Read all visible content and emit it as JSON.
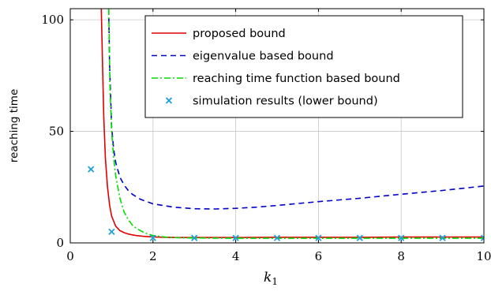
{
  "chart_data": {
    "type": "line",
    "xlabel": "k",
    "xlabel_sub": "1",
    "ylabel": "reaching time",
    "xlim": [
      0,
      10
    ],
    "ylim": [
      0,
      105
    ],
    "x_ticks": [
      "0",
      "2",
      "4",
      "6",
      "8",
      "10"
    ],
    "y_ticks": [
      "0",
      "50",
      "100"
    ],
    "grid": true,
    "legend_position": "top-right",
    "series": [
      {
        "name": "proposed bound",
        "style": "solid",
        "color": "#e00000",
        "x": [
          0.75,
          0.78,
          0.81,
          0.85,
          0.9,
          0.95,
          1.0,
          1.1,
          1.2,
          1.3,
          1.4,
          1.5,
          1.6,
          1.8,
          2.0,
          2.3,
          2.6,
          3.0,
          4.0,
          5.0,
          6.0,
          7.0,
          8.0,
          9.0,
          10.0
        ],
        "y": [
          105,
          80,
          57,
          38,
          25,
          17,
          12,
          7.5,
          5.5,
          4.6,
          4.0,
          3.6,
          3.3,
          2.9,
          2.7,
          2.5,
          2.4,
          2.4,
          2.4,
          2.5,
          2.5,
          2.5,
          2.6,
          2.6,
          2.6
        ]
      },
      {
        "name": "eigenvalue based bound",
        "style": "dashed",
        "color": "#0000c8",
        "x": [
          0.93,
          0.95,
          1.0,
          1.05,
          1.1,
          1.2,
          1.3,
          1.4,
          1.5,
          1.7,
          2.0,
          2.5,
          3.0,
          3.5,
          4.0,
          4.5,
          5.0,
          6.0,
          7.0,
          8.0,
          9.0,
          10.0
        ],
        "y": [
          105,
          80,
          52,
          42,
          36,
          29.5,
          26,
          23.5,
          21.8,
          19.5,
          17.5,
          16,
          15.3,
          15.2,
          15.5,
          16,
          16.8,
          18.5,
          20,
          21.8,
          23.5,
          25.5
        ]
      },
      {
        "name": "reaching time function based bound",
        "style": "dash-dot",
        "color": "#00dd00",
        "x": [
          0.93,
          0.96,
          1.0,
          1.05,
          1.1,
          1.2,
          1.3,
          1.4,
          1.5,
          1.6,
          1.8,
          2.0,
          2.3,
          2.6,
          3.0,
          4.0,
          5.0,
          6.0,
          7.0,
          8.0,
          9.0,
          10.0
        ],
        "y": [
          105,
          70,
          50,
          38,
          30,
          20,
          14,
          10.5,
          8,
          6.5,
          4.5,
          3.3,
          2.6,
          2.3,
          2.2,
          2.1,
          2.1,
          2.1,
          2.1,
          2.1,
          2.1,
          2.1
        ]
      },
      {
        "name": "simulation results (lower bound)",
        "style": "markers",
        "color": "#1ea0dc",
        "x": [
          0.5,
          1.0,
          2.0,
          3.0,
          4.0,
          5.0,
          6.0,
          7.0,
          8.0,
          9.0,
          10.0
        ],
        "y": [
          33,
          5,
          2.2,
          2.2,
          2.2,
          2.2,
          2.2,
          2.2,
          2.2,
          2.2,
          2.2
        ]
      }
    ]
  }
}
